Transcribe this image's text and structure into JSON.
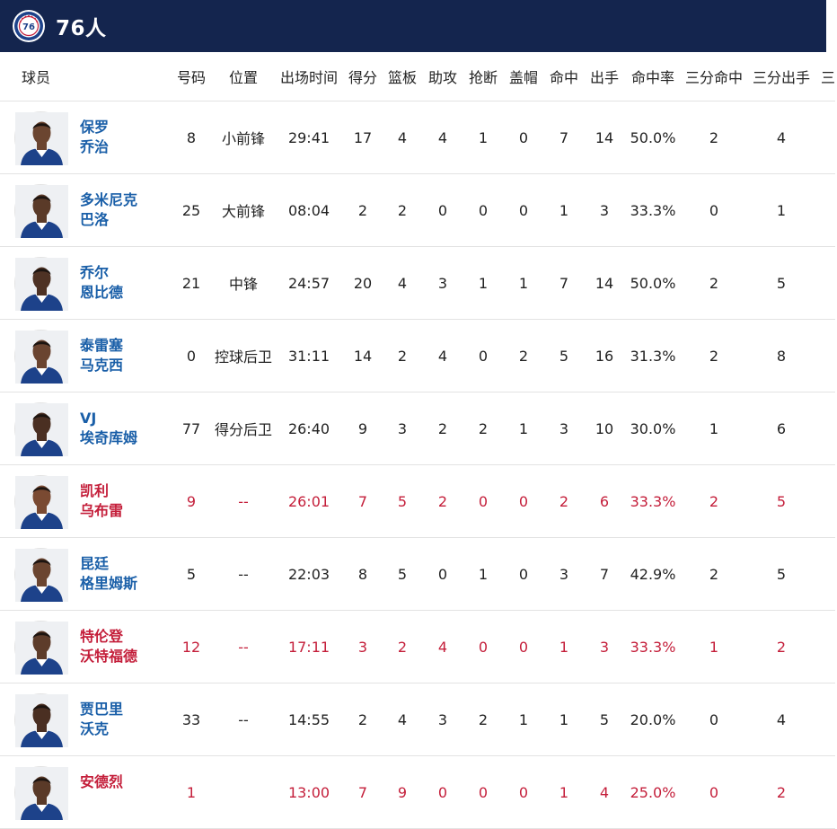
{
  "header": {
    "team_name": "76人",
    "logo_icon": "sixers-logo-icon"
  },
  "colors": {
    "header_bg": "#14254e",
    "starter_name": "#1a5fa8",
    "bench_highlight": "#c41e3a",
    "header_text": "#8a8a8a"
  },
  "columns": {
    "player": "球员",
    "num": "号码",
    "pos": "位置",
    "min": "出场时间",
    "pts": "得分",
    "reb": "篮板",
    "ast": "助攻",
    "stl": "抢断",
    "blk": "盖帽",
    "fgm": "命中",
    "fga": "出手",
    "fgp": "命中率",
    "tpm": "三分命中",
    "tpa": "三分出手",
    "more": "三"
  },
  "players": [
    {
      "name1": "保罗",
      "name2": "乔治",
      "num": "8",
      "pos": "小前锋",
      "min": "29:41",
      "pts": "17",
      "reb": "4",
      "ast": "4",
      "stl": "1",
      "blk": "0",
      "fgm": "7",
      "fga": "14",
      "fgp": "50.0%",
      "tpm": "2",
      "tpa": "4",
      "highlight": false,
      "jersey": "#1d428a",
      "skin": "#6b4530"
    },
    {
      "name1": "多米尼克",
      "name2": "巴洛",
      "num": "25",
      "pos": "大前锋",
      "min": "08:04",
      "pts": "2",
      "reb": "2",
      "ast": "0",
      "stl": "0",
      "blk": "0",
      "fgm": "1",
      "fga": "3",
      "fgp": "33.3%",
      "tpm": "0",
      "tpa": "1",
      "highlight": false,
      "jersey": "#1d428a",
      "skin": "#5a3a28"
    },
    {
      "name1": "乔尔",
      "name2": "恩比德",
      "num": "21",
      "pos": "中锋",
      "min": "24:57",
      "pts": "20",
      "reb": "4",
      "ast": "3",
      "stl": "1",
      "blk": "1",
      "fgm": "7",
      "fga": "14",
      "fgp": "50.0%",
      "tpm": "2",
      "tpa": "5",
      "highlight": false,
      "jersey": "#1d428a",
      "skin": "#4e3224"
    },
    {
      "name1": "泰雷塞",
      "name2": "马克西",
      "num": "0",
      "pos": "控球后卫",
      "min": "31:11",
      "pts": "14",
      "reb": "2",
      "ast": "4",
      "stl": "0",
      "blk": "2",
      "fgm": "5",
      "fga": "16",
      "fgp": "31.3%",
      "tpm": "2",
      "tpa": "8",
      "highlight": false,
      "jersey": "#1d428a",
      "skin": "#6a4430"
    },
    {
      "name1": "VJ",
      "name2": "埃奇库姆",
      "num": "77",
      "pos": "得分后卫",
      "min": "26:40",
      "pts": "9",
      "reb": "3",
      "ast": "2",
      "stl": "2",
      "blk": "1",
      "fgm": "3",
      "fga": "10",
      "fgp": "30.0%",
      "tpm": "1",
      "tpa": "6",
      "highlight": false,
      "jersey": "#1d428a",
      "skin": "#4a2f22"
    },
    {
      "name1": "凯利",
      "name2": "乌布雷",
      "num": "9",
      "pos": "--",
      "min": "26:01",
      "pts": "7",
      "reb": "5",
      "ast": "2",
      "stl": "0",
      "blk": "0",
      "fgm": "2",
      "fga": "6",
      "fgp": "33.3%",
      "tpm": "2",
      "tpa": "5",
      "highlight": true,
      "jersey": "#1d428a",
      "skin": "#7a4a32"
    },
    {
      "name1": "昆廷",
      "name2": "格里姆斯",
      "num": "5",
      "pos": "--",
      "min": "22:03",
      "pts": "8",
      "reb": "5",
      "ast": "0",
      "stl": "1",
      "blk": "0",
      "fgm": "3",
      "fga": "7",
      "fgp": "42.9%",
      "tpm": "2",
      "tpa": "5",
      "highlight": false,
      "jersey": "#1d428a",
      "skin": "#6b4530"
    },
    {
      "name1": "特伦登",
      "name2": "沃特福德",
      "num": "12",
      "pos": "--",
      "min": "17:11",
      "pts": "3",
      "reb": "2",
      "ast": "4",
      "stl": "0",
      "blk": "0",
      "fgm": "1",
      "fga": "3",
      "fgp": "33.3%",
      "tpm": "1",
      "tpa": "2",
      "highlight": true,
      "jersey": "#1d428a",
      "skin": "#5d3c2a"
    },
    {
      "name1": "贾巴里",
      "name2": "沃克",
      "num": "33",
      "pos": "--",
      "min": "14:55",
      "pts": "2",
      "reb": "4",
      "ast": "3",
      "stl": "2",
      "blk": "1",
      "fgm": "1",
      "fga": "5",
      "fgp": "20.0%",
      "tpm": "0",
      "tpa": "4",
      "highlight": false,
      "jersey": "#1d428a",
      "skin": "#4a2f22"
    },
    {
      "name1": "安德烈",
      "name2": "",
      "num": "1",
      "pos": "",
      "min": "13:00",
      "pts": "7",
      "reb": "9",
      "ast": "0",
      "stl": "0",
      "blk": "0",
      "fgm": "1",
      "fga": "4",
      "fgp": "25.0%",
      "tpm": "0",
      "tpa": "2",
      "highlight": true,
      "jersey": "#1d428a",
      "skin": "#5a3a28"
    }
  ]
}
